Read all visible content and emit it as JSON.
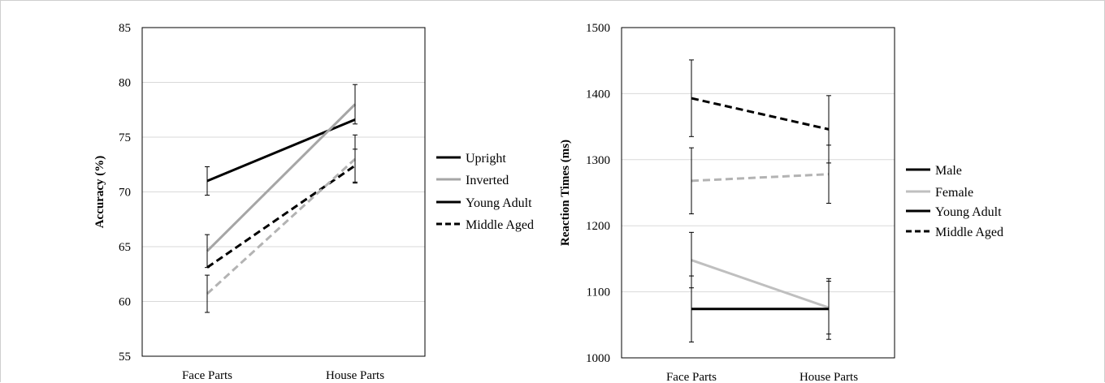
{
  "chart_data": [
    {
      "type": "line",
      "ylabel": "Accuracy (%)",
      "ylim": [
        55,
        85
      ],
      "yticks": [
        55,
        60,
        65,
        70,
        75,
        80,
        85
      ],
      "categories": [
        "Face Parts",
        "House Parts"
      ],
      "grid": true,
      "legend_position": "right",
      "legend": [
        {
          "label": "Upright",
          "color": "#000000",
          "dash": "solid"
        },
        {
          "label": "Inverted",
          "color": "#a6a6a6",
          "dash": "solid"
        },
        {
          "label": "Young Adult",
          "color": "#000000",
          "dash": "solid"
        },
        {
          "label": "Middle Aged",
          "color": "#000000",
          "dash": "dashed"
        }
      ],
      "series": [
        {
          "color": "#000000",
          "dash": "solid",
          "values": [
            71.0,
            76.6
          ],
          "error": [
            1.3,
            0
          ]
        },
        {
          "color": "#a6a6a6",
          "dash": "solid",
          "values": [
            64.6,
            78.0
          ],
          "error": [
            1.5,
            1.8
          ]
        },
        {
          "color": "#000000",
          "dash": "dashed",
          "values": [
            63.1,
            72.4
          ],
          "error": [
            0,
            1.5
          ]
        },
        {
          "color": "#b3b3b3",
          "dash": "dashed",
          "values": [
            60.7,
            73.0
          ],
          "error": [
            1.7,
            2.2
          ]
        }
      ]
    },
    {
      "type": "line",
      "ylabel": "Reaction Times (ms)",
      "ylim": [
        1000,
        1500
      ],
      "yticks": [
        1000,
        1100,
        1200,
        1300,
        1400,
        1500
      ],
      "categories": [
        "Face Parts",
        "House Parts"
      ],
      "grid": true,
      "legend_position": "right",
      "legend": [
        {
          "label": "Male",
          "color": "#000000",
          "dash": "solid"
        },
        {
          "label": "Female",
          "color": "#bfbfbf",
          "dash": "solid"
        },
        {
          "label": "Young Adult",
          "color": "#000000",
          "dash": "solid"
        },
        {
          "label": "Middle Aged",
          "color": "#000000",
          "dash": "dashed"
        }
      ],
      "series": [
        {
          "color": "#000000",
          "dash": "dashed",
          "values": [
            1393,
            1346
          ],
          "error": [
            58,
            51
          ]
        },
        {
          "color": "#b3b3b3",
          "dash": "dashed",
          "values": [
            1268,
            1278
          ],
          "error": [
            50,
            44
          ]
        },
        {
          "color": "#bfbfbf",
          "dash": "solid",
          "values": [
            1148,
            1076
          ],
          "error": [
            42,
            40
          ]
        },
        {
          "color": "#000000",
          "dash": "solid",
          "values": [
            1074,
            1074
          ],
          "error": [
            50,
            46
          ]
        }
      ]
    }
  ]
}
